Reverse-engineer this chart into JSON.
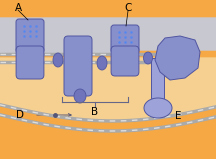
{
  "bg_color": "#F5A843",
  "inner_space_color": "#F5D090",
  "gray_band_color": "#C8C8D0",
  "purple_dark": "#5055A0",
  "purple_light": "#8890CC",
  "purple_mid": "#7075BB",
  "purple_pale": "#9DA3D8",
  "dot_blue": "#5588EE",
  "mem_color1": "#AAAAAA",
  "mem_color2": "#DDDDDD",
  "label_A": "A",
  "label_B": "B",
  "label_C": "C",
  "label_D": "D",
  "label_E": "E"
}
